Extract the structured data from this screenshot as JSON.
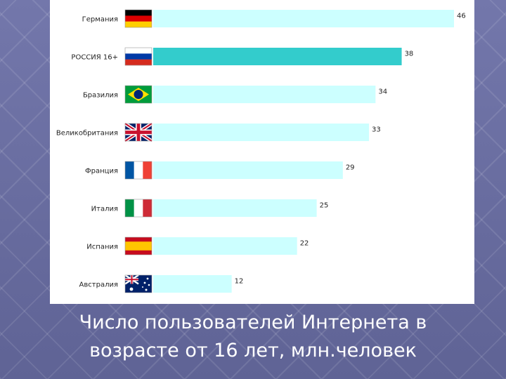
{
  "caption": {
    "line1": "Число пользователей Интернета в",
    "line2": "возрасте от 16 лет, млн.человек"
  },
  "colors": {
    "bar": "#ccffff",
    "bar_highlight": "#33cccc",
    "panel": "#ffffff"
  },
  "chart_data": {
    "type": "bar",
    "orientation": "horizontal",
    "categories": [
      "Германия",
      "РОССИЯ 16+",
      "Бразилия",
      "Великобритания",
      "Франция",
      "Италия",
      "Испания",
      "Австралия"
    ],
    "values": [
      46,
      38,
      34,
      33,
      29,
      25,
      22,
      12
    ],
    "flags": [
      "germany-flag-icon",
      "russia-flag-icon",
      "brazil-flag-icon",
      "uk-flag-icon",
      "france-flag-icon",
      "italy-flag-icon",
      "spain-flag-icon",
      "australia-flag-icon"
    ],
    "highlight_index": 1,
    "xlim": [
      0,
      46
    ],
    "grid": false
  }
}
